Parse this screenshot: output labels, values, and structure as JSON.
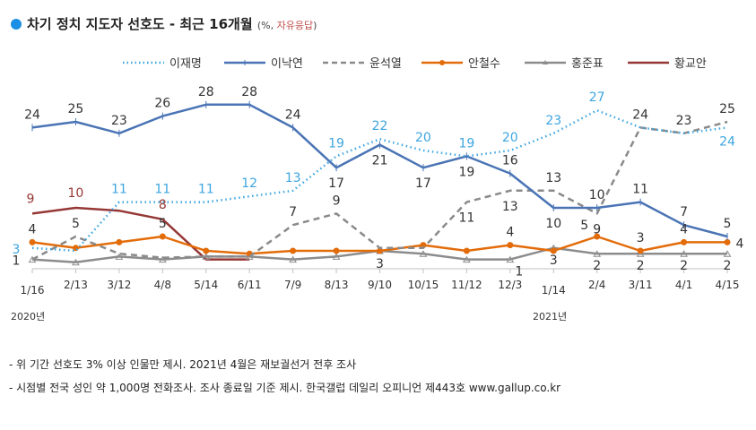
{
  "title": {
    "main": "차기 정치 지도자 선호도 - 최근 16개월",
    "unit_prefix": "(%, ",
    "unit_red": "자유응답",
    "unit_suffix": ")"
  },
  "colors": {
    "title_dot": "#1a8fe3",
    "lee_jm": "#3da5e0",
    "lee_ny": "#4a74b5",
    "yoon": "#8a8a8a",
    "ahn": "#e36c0a",
    "hong": "#8c8c8c",
    "hwang": "#953735"
  },
  "years": [
    "2020년",
    "2021년"
  ],
  "notes": [
    "- 위 기간 선호도 3% 이상 인물만 제시. 2021년 4월은 재보궐선거 전후 조사",
    "- 시점별 전국 성인 약 1,000명 전화조사. 조사 종료일 기준 제시. 한국갤럽 데일리 오피니언 제443호 www.gallup.co.kr"
  ],
  "chart_data": {
    "type": "line",
    "title": "차기 정치 지도자 선호도 - 최근 16개월",
    "xlabel": "",
    "ylabel": "%",
    "ylim": [
      0,
      30
    ],
    "grid": false,
    "legend": "top",
    "categories": [
      "1/16",
      "2/13",
      "3/12",
      "4/8",
      "5/14",
      "6/11",
      "7/9",
      "8/13",
      "9/10",
      "10/15",
      "11/12",
      "12/3",
      "1/14",
      "2/4",
      "3/11",
      "4/1",
      "4/15"
    ],
    "series": [
      {
        "name": "이재명",
        "key": "lee_jm",
        "style": "dotted",
        "marker": "none",
        "values": [
          3,
          2.5,
          11,
          11,
          11,
          12,
          13,
          19,
          22,
          20,
          19,
          20,
          23,
          27,
          24,
          23,
          24
        ],
        "labels": [
          "3",
          "",
          "11",
          "11",
          "11",
          "12",
          "13",
          "19",
          "22",
          "20",
          "19",
          "20",
          "23",
          "27",
          "",
          "",
          "24"
        ]
      },
      {
        "name": "이낙연",
        "key": "lee_ny",
        "style": "solid",
        "marker": "plus",
        "values": [
          24,
          25,
          23,
          26,
          28,
          28,
          24,
          17,
          21,
          17,
          19,
          16,
          10,
          10,
          11,
          7,
          5
        ],
        "labels": [
          "24",
          "25",
          "23",
          "26",
          "28",
          "28",
          "24",
          "17",
          "21",
          "17",
          "19",
          "16",
          "10",
          "10",
          "11",
          "7",
          "5"
        ]
      },
      {
        "name": "윤석열",
        "key": "yoon",
        "style": "dashed",
        "marker": "none",
        "values": [
          1,
          5,
          2,
          1.3,
          1.5,
          1.5,
          7,
          9,
          3,
          3,
          11,
          13,
          13,
          9,
          24,
          23,
          25
        ],
        "labels": [
          "",
          "5",
          "",
          "",
          "",
          "",
          "7",
          "9",
          "3",
          "",
          "11",
          "13",
          "13",
          "9",
          "24",
          "23",
          "25"
        ]
      },
      {
        "name": "안철수",
        "key": "ahn",
        "style": "solid",
        "marker": "circle",
        "values": [
          4,
          3,
          4,
          5,
          2.5,
          2,
          2.5,
          2.5,
          2.5,
          3.5,
          2.5,
          3.5,
          2.5,
          5,
          2.5,
          4,
          4
        ],
        "labels": [
          "4",
          "",
          "",
          "5",
          "",
          "",
          "",
          "",
          "",
          "",
          "",
          "4",
          "",
          "5",
          "3",
          "4",
          "4"
        ]
      },
      {
        "name": "홍준표",
        "key": "hong",
        "style": "solid",
        "marker": "triangle",
        "values": [
          1,
          0.5,
          1.5,
          1,
          1.5,
          1.5,
          1,
          1.5,
          2.5,
          2,
          1,
          1,
          3,
          2,
          2,
          2,
          2
        ],
        "labels": [
          "1",
          "",
          "",
          "",
          "",
          "",
          "",
          "",
          "",
          "",
          "",
          "1",
          "3",
          "2",
          "2",
          "2",
          "2"
        ]
      },
      {
        "name": "황교안",
        "key": "hwang",
        "style": "solid",
        "marker": "none",
        "values": [
          9,
          10,
          9.5,
          8,
          1,
          1,
          null,
          null,
          null,
          null,
          null,
          null,
          null,
          null,
          null,
          null,
          null
        ],
        "labels": [
          "9",
          "10",
          "",
          "8",
          "",
          "",
          "",
          "",
          "",
          "",
          "",
          "",
          "",
          "",
          "",
          "",
          ""
        ]
      }
    ]
  }
}
